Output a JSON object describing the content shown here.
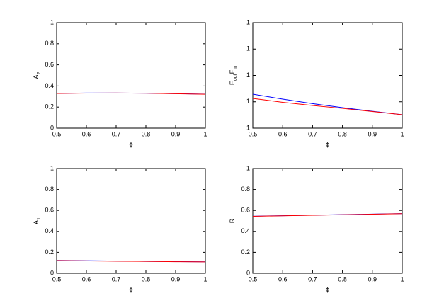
{
  "chart_data": [
    {
      "type": "line",
      "xlabel": "ϕ",
      "ylabel": [
        {
          "text": "A",
          "sub": "2"
        }
      ],
      "x": [
        0.5,
        0.6,
        0.7,
        0.8,
        0.9,
        1
      ],
      "series": [
        {
          "color": "#0000ff",
          "values": [
            0.33,
            0.333,
            0.333,
            0.331,
            0.327,
            0.322
          ]
        },
        {
          "color": "#ff0000",
          "values": [
            0.329,
            0.332,
            0.333,
            0.331,
            0.326,
            0.321
          ]
        }
      ],
      "xlim": [
        0.5,
        1
      ],
      "xticks": [
        0.5,
        0.6,
        0.7,
        0.8,
        0.9,
        1
      ],
      "ylim": [
        0,
        1
      ],
      "yticks": [
        0,
        0.2,
        0.4,
        0.6,
        0.8,
        1
      ]
    },
    {
      "type": "line",
      "xlabel": "ϕ",
      "ylabel": [
        {
          "text": "E",
          "sub": "out"
        },
        {
          "text": "E",
          "sub": "in"
        }
      ],
      "x": [
        0.5,
        0.6,
        0.7,
        0.8,
        0.9,
        1
      ],
      "series": [
        {
          "color": "#0000ff",
          "values": [
            0.99644,
            0.9955,
            0.99465,
            0.9939,
            0.9932,
            0.99255
          ]
        },
        {
          "color": "#ff0000",
          "values": [
            0.99564,
            0.9949,
            0.9943,
            0.99375,
            0.99315,
            0.99255
          ]
        }
      ],
      "xlim": [
        0.5,
        1
      ],
      "xticks": [
        0.5,
        0.6,
        0.7,
        0.8,
        0.9,
        1
      ],
      "ylim": [
        0.99,
        1.01
      ],
      "yticks": [
        {
          "value": 0.99,
          "label": "1"
        },
        {
          "value": 0.995,
          "label": "1"
        },
        {
          "value": 1,
          "label": "1"
        },
        {
          "value": 1.005,
          "label": "1"
        },
        {
          "value": 1.01,
          "label": "1"
        }
      ]
    },
    {
      "type": "line",
      "xlabel": "ϕ",
      "ylabel": [
        {
          "text": "A",
          "sub": "1"
        }
      ],
      "x": [
        0.5,
        0.6,
        0.7,
        0.8,
        0.9,
        1
      ],
      "series": [
        {
          "color": "#0000ff",
          "values": [
            0.123,
            0.12,
            0.117,
            0.114,
            0.112,
            0.11
          ]
        },
        {
          "color": "#ff0000",
          "values": [
            0.122,
            0.119,
            0.116,
            0.114,
            0.111,
            0.109
          ]
        }
      ],
      "xlim": [
        0.5,
        1
      ],
      "xticks": [
        0.5,
        0.6,
        0.7,
        0.8,
        0.9,
        1
      ],
      "ylim": [
        0,
        1
      ],
      "yticks": [
        0,
        0.2,
        0.4,
        0.6,
        0.8,
        1
      ]
    },
    {
      "type": "line",
      "xlabel": "ϕ",
      "ylabel": [
        {
          "text": "R"
        }
      ],
      "x": [
        0.5,
        0.6,
        0.7,
        0.8,
        0.9,
        1
      ],
      "series": [
        {
          "color": "#0000ff",
          "values": [
            0.545,
            0.55,
            0.555,
            0.56,
            0.565,
            0.57
          ]
        },
        {
          "color": "#ff0000",
          "values": [
            0.544,
            0.549,
            0.554,
            0.559,
            0.564,
            0.569
          ]
        }
      ],
      "xlim": [
        0.5,
        1
      ],
      "xticks": [
        0.5,
        0.6,
        0.7,
        0.8,
        0.9,
        1
      ],
      "ylim": [
        0,
        1
      ],
      "yticks": [
        0,
        0.2,
        0.4,
        0.6,
        0.8,
        1
      ]
    }
  ]
}
